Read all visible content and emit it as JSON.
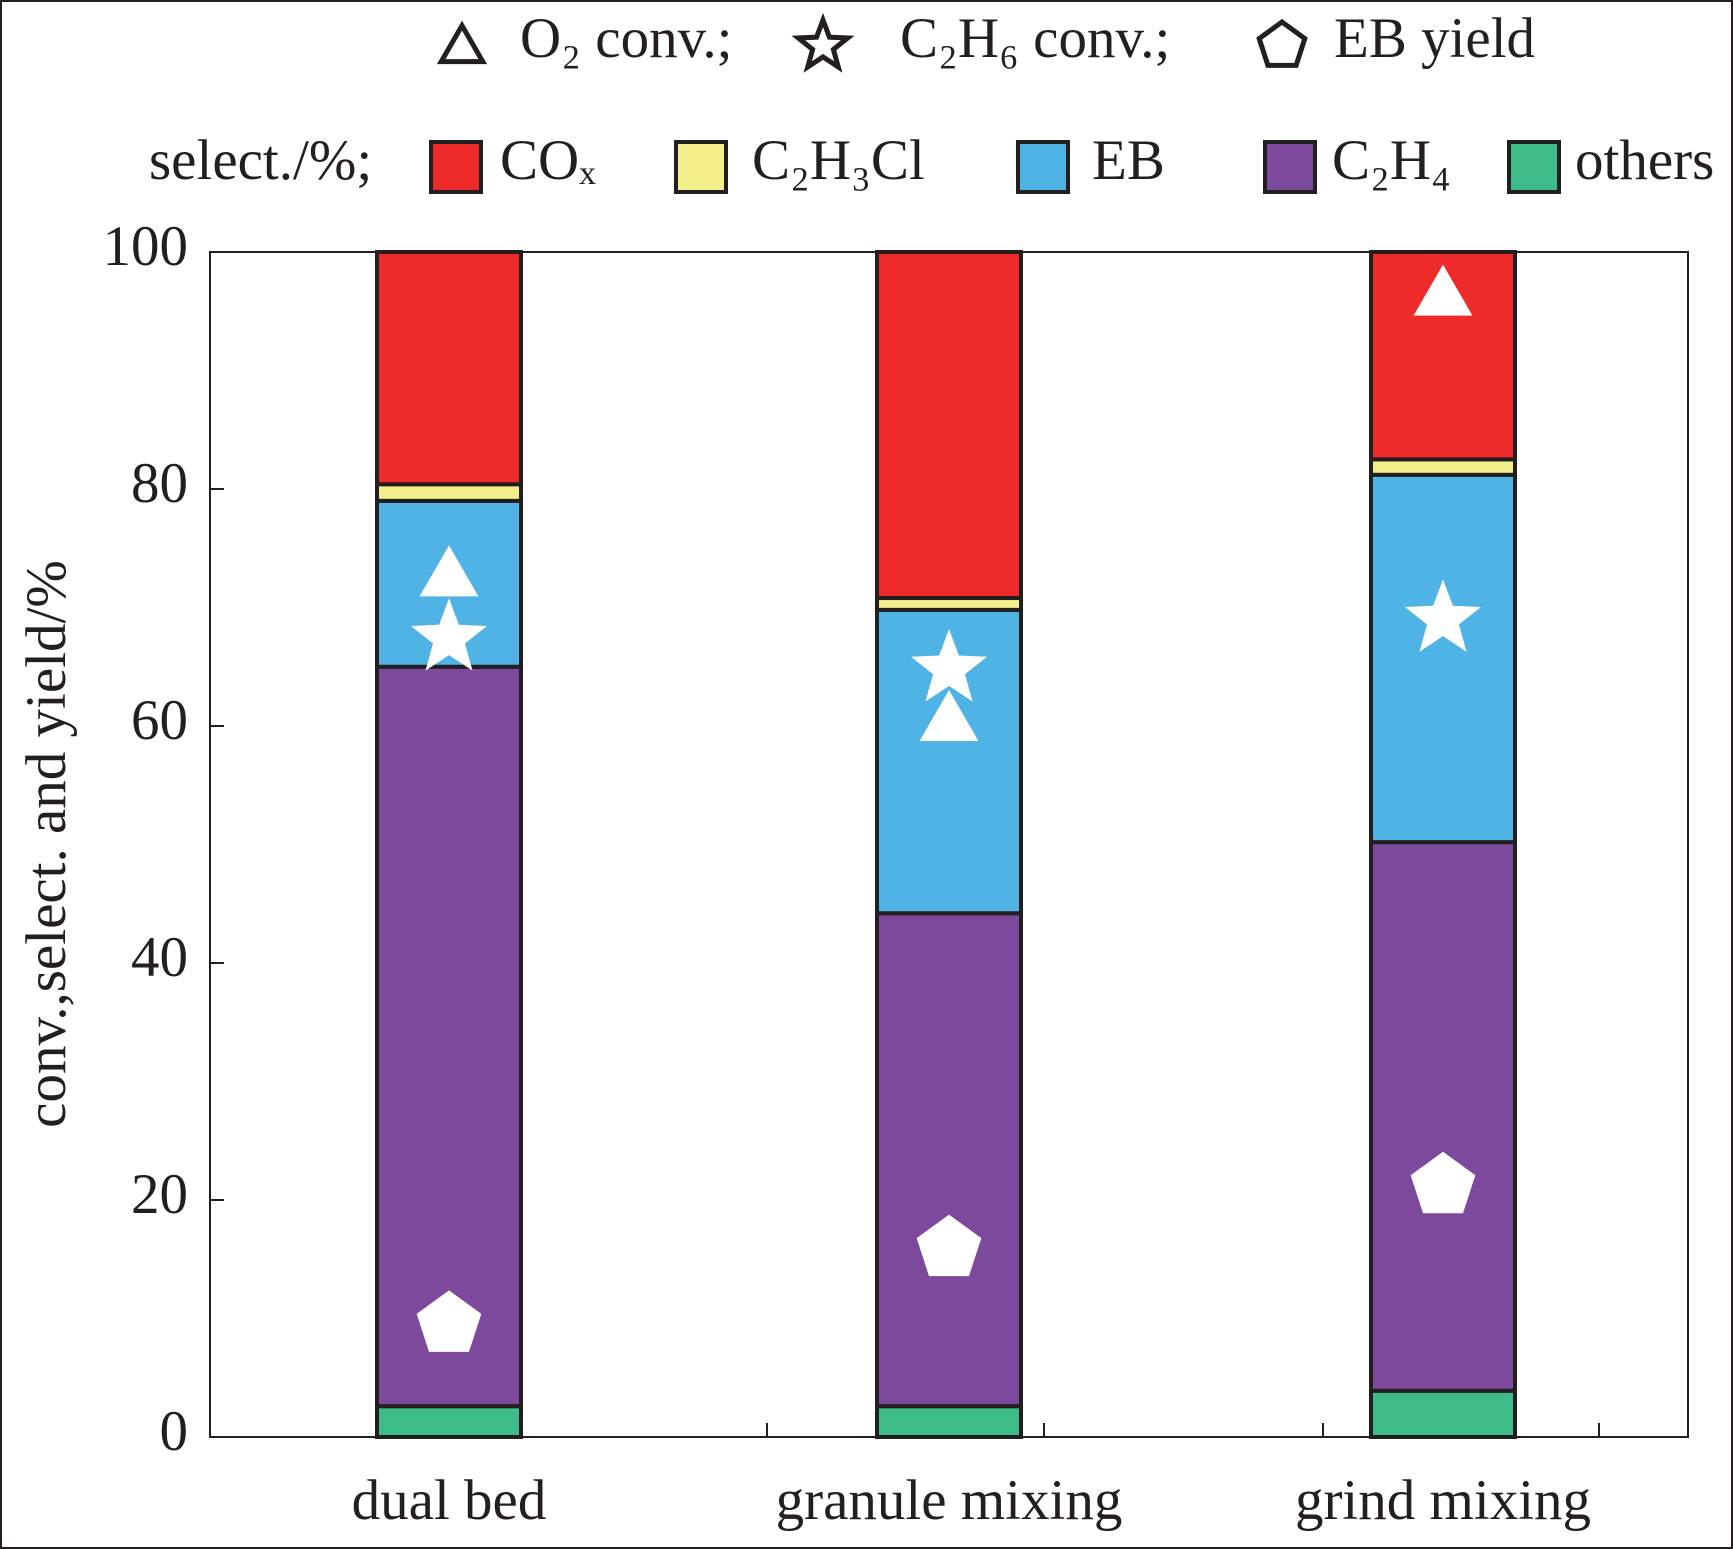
{
  "chart_data": {
    "type": "stacked_bar",
    "y_label": "conv.,select. and yield/%",
    "legend_prefix": "select./%;",
    "categories": [
      "dual bed",
      "granule mixing",
      "grind mixing"
    ],
    "ylim": [
      0,
      100
    ],
    "yticks": [
      0,
      20,
      40,
      60,
      80,
      100
    ],
    "series": [
      {
        "name": "COₓ",
        "color": "#ee2a2b",
        "values": [
          19.6,
          29.2,
          17.5
        ]
      },
      {
        "name": "C₂H₃Cl",
        "color": "#f3f08c",
        "values": [
          1.4,
          1.0,
          1.3
        ]
      },
      {
        "name": "EB",
        "color": "#4fb3e6",
        "values": [
          14.0,
          25.6,
          31.0
        ]
      },
      {
        "name": "C₂H₄",
        "color": "#7c499c",
        "values": [
          62.4,
          41.6,
          46.3
        ]
      },
      {
        "name": "others",
        "color": "#3dbb89",
        "values": [
          2.6,
          2.6,
          3.9
        ]
      }
    ],
    "markers": [
      {
        "name": "O₂ conv.;",
        "shape": "triangle",
        "values": [
          72.8,
          60.6,
          96.5
        ]
      },
      {
        "name": "C₂H₆ conv.;",
        "shape": "star",
        "values": [
          67.4,
          64.8,
          69.0
        ]
      },
      {
        "name": "EB yield",
        "shape": "pentagon",
        "values": [
          9.5,
          15.9,
          21.2
        ]
      }
    ]
  }
}
